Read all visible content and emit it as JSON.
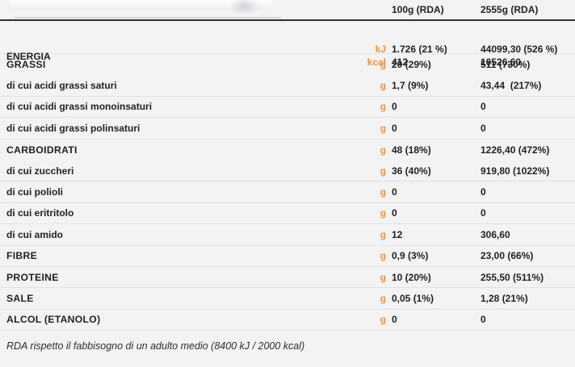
{
  "header": {
    "col1": "100g (RDA)",
    "col2": "2555g (RDA)"
  },
  "energy": {
    "label": "ENERGIA",
    "kj": {
      "unit": "kJ",
      "per100": "1.726 (21 %)",
      "per_portion": "44099,30 (526 %)"
    },
    "kcal": {
      "unit": "kcal",
      "per100": "412",
      "per_portion": "10526,60"
    }
  },
  "rows": [
    {
      "label": "GRASSI",
      "unit": "g",
      "per100": "20 (29%)",
      "per_portion": "511 (730%)"
    },
    {
      "label": "di cui acidi grassi saturi",
      "unit": "g",
      "per100": "1,7 (9%)",
      "per_portion": "43,44  (217%)"
    },
    {
      "label": "di cui acidi grassi monoinsaturi",
      "unit": "g",
      "per100": "0",
      "per_portion": "0"
    },
    {
      "label": "di cui acidi grassi polinsaturi",
      "unit": "g",
      "per100": "0",
      "per_portion": "0"
    },
    {
      "label": "CARBOIDRATI",
      "unit": "g",
      "per100": "48 (18%)",
      "per_portion": "1226,40 (472%)"
    },
    {
      "label": "di cui zuccheri",
      "unit": "g",
      "per100": "36 (40%)",
      "per_portion": "919,80 (1022%)"
    },
    {
      "label": "di cui polioli",
      "unit": "g",
      "per100": "0",
      "per_portion": "0"
    },
    {
      "label": "di cui eritritolo",
      "unit": "g",
      "per100": "0",
      "per_portion": "0"
    },
    {
      "label": "di cui amido",
      "unit": "g",
      "per100": "12",
      "per_portion": "306,60"
    },
    {
      "label": "FIBRE",
      "unit": "g",
      "per100": "0,9 (3%)",
      "per_portion": "23,00 (66%)"
    },
    {
      "label": "PROTEINE",
      "unit": "g",
      "per100": "10 (20%)",
      "per_portion": "255,50 (511%)"
    },
    {
      "label": "SALE",
      "unit": "g",
      "per100": "0,05 (1%)",
      "per_portion": "1,28 (21%)"
    },
    {
      "label": "ALCOL (ETANOLO)",
      "unit": "g",
      "per100": "0",
      "per_portion": "0"
    }
  ],
  "footer": {
    "note": "RDA rispetto il fabbisogno di un adulto medio (8400 kJ / 2000 kcal)"
  },
  "colors": {
    "unit_accent": "#f6913e",
    "header_rule": "#2b3340",
    "row_border": "#e3e3e6",
    "background": "#f3f3f4",
    "text": "#1f2023"
  }
}
